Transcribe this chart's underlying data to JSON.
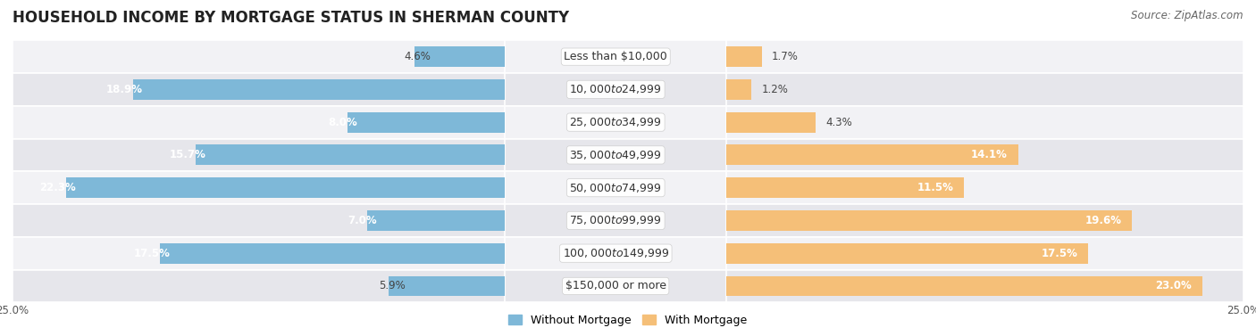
{
  "title": "HOUSEHOLD INCOME BY MORTGAGE STATUS IN SHERMAN COUNTY",
  "source": "Source: ZipAtlas.com",
  "categories": [
    "Less than $10,000",
    "$10,000 to $24,999",
    "$25,000 to $34,999",
    "$35,000 to $49,999",
    "$50,000 to $74,999",
    "$75,000 to $99,999",
    "$100,000 to $149,999",
    "$150,000 or more"
  ],
  "without_mortgage": [
    4.6,
    18.9,
    8.0,
    15.7,
    22.3,
    7.0,
    17.5,
    5.9
  ],
  "with_mortgage": [
    1.7,
    1.2,
    4.3,
    14.1,
    11.5,
    19.6,
    17.5,
    23.0
  ],
  "color_without": "#7EB8D8",
  "color_with": "#F5BF78",
  "bg_light": "#f2f2f5",
  "bg_dark": "#e6e6eb",
  "axis_limit": 25.0,
  "legend_labels": [
    "Without Mortgage",
    "With Mortgage"
  ],
  "title_fontsize": 12,
  "label_fontsize": 9,
  "value_fontsize": 8.5,
  "tick_fontsize": 8.5,
  "source_fontsize": 8.5
}
